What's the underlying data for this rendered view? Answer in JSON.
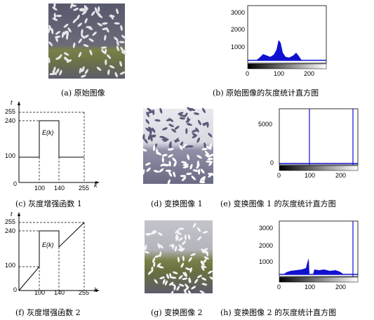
{
  "captions": {
    "a": "(a)  原始图像",
    "b": "(b)  原始图像的灰度统计直方图",
    "c": "(c)  灰度增强函数 1",
    "d": "(d)  变换图像 1",
    "e": "(e)  变换图像 1 的灰度统计直方图",
    "f": "(f)  灰度增强函数 2",
    "g": "(g)  变换图像 2",
    "h": "(h)  变换图像 2 的灰度统计直方图"
  },
  "func_plot": {
    "y_axis_label": "t",
    "x_axis_label": "k",
    "y_ticks": [
      "255",
      "240",
      "100"
    ],
    "x_ticks": [
      "100",
      "140",
      "255"
    ],
    "origin_label": "0",
    "box_label": "E(k)"
  },
  "hist_b": {
    "y_ticks": [
      "3000",
      "2000",
      "1000"
    ],
    "x_ticks": [
      "0",
      "100",
      "200"
    ]
  },
  "hist_e": {
    "y_ticks": [
      "5000",
      "0"
    ],
    "x_ticks": [
      "0",
      "100",
      "200"
    ]
  },
  "hist_h": {
    "y_ticks": [
      "3000",
      "2000",
      "1000"
    ],
    "x_ticks": [
      "0",
      "100",
      "200"
    ]
  },
  "colors": {
    "hist_fill": "#1010d0",
    "axis": "#000000"
  }
}
